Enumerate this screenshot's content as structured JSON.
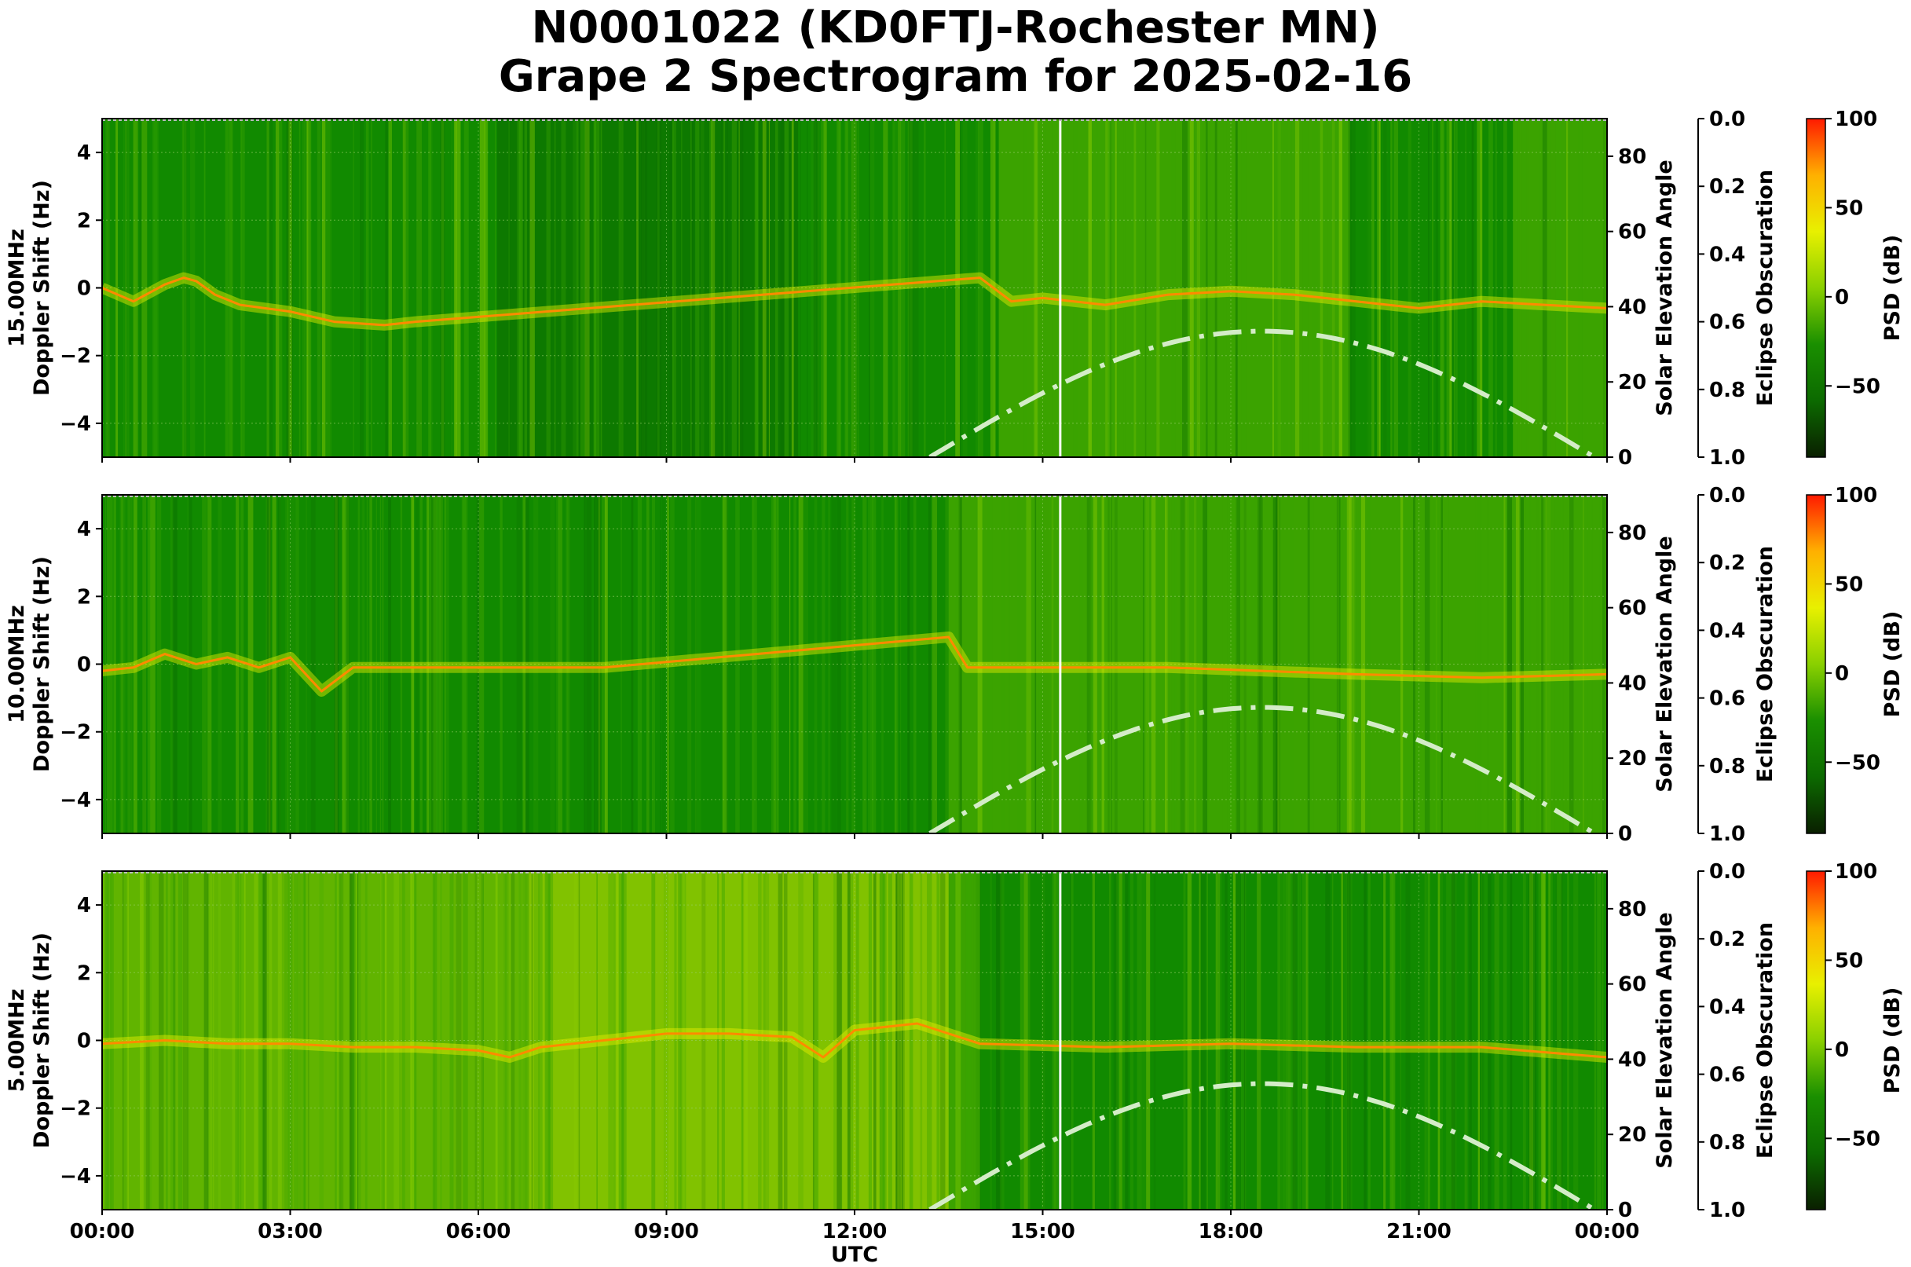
{
  "title_line1": "N0001022 (KD0FTJ-Rochester MN)",
  "title_line2": "Grape 2 Spectrogram for 2025-02-16",
  "colors": {
    "colormap": [
      "#0a1f00",
      "#0c6a00",
      "#1a8f00",
      "#8ad000",
      "#e8f000",
      "#ffb000",
      "#ff1a00"
    ],
    "solar_curve": "#d4ecc8",
    "axis": "#000000"
  },
  "chart_data": [
    {
      "type": "heatmap",
      "name": "15.00MHz",
      "ylabel_line1": "15.00MHz",
      "ylabel_line2": "Doppler Shift (Hz)",
      "ylim": [
        -5,
        5
      ],
      "yticks": [
        "4",
        "2",
        "0",
        "−2",
        "−4"
      ],
      "y2label": "Solar Elevation Angle",
      "y2lim": [
        0,
        90
      ],
      "y2ticks": [
        "80",
        "60",
        "40",
        "20",
        "0"
      ],
      "y3label": "Eclipse Obscuration",
      "y3ticks": [
        "0.0",
        "0.2",
        "0.4",
        "0.6",
        "0.8",
        "1.0"
      ],
      "cbar_label": "PSD (dB)",
      "cbar_ticks": [
        "100",
        "50",
        "0",
        "−50"
      ],
      "doppler_trace": [
        [
          0,
          0
        ],
        [
          0.5,
          -0.4
        ],
        [
          1.0,
          0.1
        ],
        [
          1.3,
          0.3
        ],
        [
          1.5,
          0.2
        ],
        [
          1.8,
          -0.2
        ],
        [
          2.2,
          -0.5
        ],
        [
          3,
          -0.7
        ],
        [
          3.7,
          -1.0
        ],
        [
          4.5,
          -1.1
        ],
        [
          5,
          -1.0
        ],
        [
          14.0,
          0.3
        ],
        [
          14.5,
          -0.4
        ],
        [
          15,
          -0.3
        ],
        [
          16,
          -0.5
        ],
        [
          17,
          -0.2
        ],
        [
          18,
          -0.1
        ],
        [
          19,
          -0.2
        ],
        [
          20,
          -0.4
        ],
        [
          21,
          -0.6
        ],
        [
          22,
          -0.4
        ],
        [
          23,
          -0.5
        ],
        [
          24,
          -0.6
        ]
      ],
      "bright_segments": [
        [
          14.3,
          19.9
        ],
        [
          22.5,
          24
        ]
      ],
      "dark_segments": [
        [
          6.3,
          11.1
        ]
      ]
    },
    {
      "type": "heatmap",
      "name": "10.00MHz",
      "ylabel_line1": "10.00MHz",
      "ylabel_line2": "Doppler Shift (Hz)",
      "ylim": [
        -5,
        5
      ],
      "yticks": [
        "4",
        "2",
        "0",
        "−2",
        "−4"
      ],
      "y2label": "Solar Elevation Angle",
      "y2lim": [
        0,
        90
      ],
      "y2ticks": [
        "80",
        "60",
        "40",
        "20",
        "0"
      ],
      "y3label": "Eclipse Obscuration",
      "y3ticks": [
        "0.0",
        "0.2",
        "0.4",
        "0.6",
        "0.8",
        "1.0"
      ],
      "cbar_label": "PSD (dB)",
      "cbar_ticks": [
        "100",
        "50",
        "0",
        "−50"
      ],
      "doppler_trace": [
        [
          0,
          -0.2
        ],
        [
          0.5,
          -0.1
        ],
        [
          1.0,
          0.3
        ],
        [
          1.5,
          0.0
        ],
        [
          2.0,
          0.2
        ],
        [
          2.5,
          -0.1
        ],
        [
          3.0,
          0.2
        ],
        [
          3.5,
          -0.8
        ],
        [
          4,
          -0.1
        ],
        [
          8,
          -0.1
        ],
        [
          13.5,
          0.8
        ],
        [
          13.8,
          -0.1
        ],
        [
          15,
          -0.1
        ],
        [
          17,
          -0.1
        ],
        [
          20,
          -0.3
        ],
        [
          22,
          -0.4
        ],
        [
          24,
          -0.3
        ]
      ],
      "bright_segments": [
        [
          13.5,
          24
        ]
      ],
      "dark_segments": []
    },
    {
      "type": "heatmap",
      "name": "5.00MHz",
      "ylabel_line1": "5.00MHz",
      "ylabel_line2": "Doppler Shift (Hz)",
      "ylim": [
        -5,
        5
      ],
      "yticks": [
        "4",
        "2",
        "0",
        "−2",
        "−4"
      ],
      "y2label": "Solar Elevation Angle",
      "y2lim": [
        0,
        90
      ],
      "y2ticks": [
        "80",
        "60",
        "40",
        "20",
        "0"
      ],
      "y3label": "Eclipse Obscuration",
      "y3ticks": [
        "0.0",
        "0.2",
        "0.4",
        "0.6",
        "0.8",
        "1.0"
      ],
      "cbar_label": "PSD (dB)",
      "cbar_ticks": [
        "100",
        "50",
        "0",
        "−50"
      ],
      "doppler_trace": [
        [
          0,
          -0.1
        ],
        [
          1,
          0
        ],
        [
          2,
          -0.1
        ],
        [
          3,
          -0.1
        ],
        [
          4,
          -0.2
        ],
        [
          5,
          -0.2
        ],
        [
          6,
          -0.3
        ],
        [
          6.5,
          -0.5
        ],
        [
          7,
          -0.2
        ],
        [
          8,
          0
        ],
        [
          9,
          0.2
        ],
        [
          10,
          0.2
        ],
        [
          11,
          0.1
        ],
        [
          11.5,
          -0.5
        ],
        [
          12,
          0.3
        ],
        [
          13,
          0.5
        ],
        [
          14,
          -0.1
        ],
        [
          16,
          -0.2
        ],
        [
          18,
          -0.1
        ],
        [
          20,
          -0.2
        ],
        [
          22,
          -0.2
        ],
        [
          24,
          -0.5
        ]
      ],
      "bright_segments": [
        [
          0,
          14.0
        ]
      ],
      "dark_segments": []
    }
  ],
  "xticks": [
    "00:00",
    "03:00",
    "06:00",
    "09:00",
    "12:00",
    "15:00",
    "18:00",
    "21:00",
    "00:00"
  ],
  "xlabel": "UTC",
  "xlim_hours": [
    0,
    24
  ],
  "solar_elevation": {
    "peak_hour": 18.5,
    "peak_deg": 33.5,
    "sunrise_hour": 13.2,
    "sunset_hour": 23.8
  },
  "marker_hour": 15.28
}
